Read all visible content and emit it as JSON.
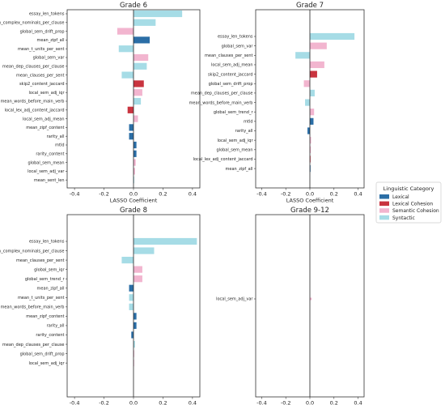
{
  "colors": {
    "Lexical": "#2b6ea6",
    "Lexical Cohesion": "#c9343f",
    "Semantic Cohesion": "#f2b5cf",
    "Syntactic": "#a6dce6"
  },
  "legend": {
    "title": "Linguistic Category",
    "items": [
      "Lexical",
      "Lexical Cohesion",
      "Semantic Cohesion",
      "Syntactic"
    ]
  },
  "chart_data": [
    {
      "type": "bar",
      "orientation": "horizontal",
      "title": "Grade 6",
      "xlabel": "LASSO Coefficient",
      "xlim": [
        -0.45,
        0.45
      ],
      "xticks": [
        "-0.4",
        "-0.2",
        "0.0",
        "0.2",
        "0.4"
      ],
      "xtick_values": [
        -0.4,
        -0.2,
        0.0,
        0.2,
        0.4
      ],
      "bars": [
        {
          "feature": "essay_len_tokens",
          "value": 0.33,
          "category": "Syntactic"
        },
        {
          "feature": "mean_complex_nominals_per_clause",
          "value": 0.15,
          "category": "Syntactic"
        },
        {
          "feature": "global_sem_drift_prop",
          "value": -0.11,
          "category": "Semantic Cohesion"
        },
        {
          "feature": "mean_zipf_all",
          "value": 0.11,
          "category": "Lexical"
        },
        {
          "feature": "mean_t_units_per_sent",
          "value": -0.1,
          "category": "Syntactic"
        },
        {
          "feature": "global_sem_var",
          "value": 0.1,
          "category": "Semantic Cohesion"
        },
        {
          "feature": "mean_dep_clauses_per_clause",
          "value": 0.09,
          "category": "Syntactic"
        },
        {
          "feature": "mean_clauses_per_sent",
          "value": -0.08,
          "category": "Syntactic"
        },
        {
          "feature": "skip2_content_jaccard",
          "value": 0.07,
          "category": "Lexical Cohesion"
        },
        {
          "feature": "local_sem_adj_iqr",
          "value": 0.06,
          "category": "Semantic Cohesion"
        },
        {
          "feature": "mean_words_before_main_verb",
          "value": 0.05,
          "category": "Syntactic"
        },
        {
          "feature": "local_lex_adj_content_jaccard",
          "value": -0.04,
          "category": "Lexical Cohesion"
        },
        {
          "feature": "local_sem_adj_mean",
          "value": 0.03,
          "category": "Semantic Cohesion"
        },
        {
          "feature": "mean_zipf_content",
          "value": -0.03,
          "category": "Lexical"
        },
        {
          "feature": "rarity_all",
          "value": -0.03,
          "category": "Lexical"
        },
        {
          "feature": "mtld",
          "value": 0.02,
          "category": "Lexical"
        },
        {
          "feature": "rarity_content",
          "value": 0.02,
          "category": "Lexical"
        },
        {
          "feature": "global_sem_mean",
          "value": 0.015,
          "category": "Semantic Cohesion"
        },
        {
          "feature": "local_sem_adj_var",
          "value": 0.01,
          "category": "Semantic Cohesion"
        },
        {
          "feature": "mean_sent_len",
          "value": 0.005,
          "category": "Syntactic"
        }
      ]
    },
    {
      "type": "bar",
      "orientation": "horizontal",
      "title": "Grade 7",
      "xlabel": "LASSO Coefficient",
      "xlim": [
        -0.45,
        0.45
      ],
      "xticks": [
        "-0.4",
        "-0.2",
        "0.0",
        "0.2",
        "0.4"
      ],
      "xtick_values": [
        -0.4,
        -0.2,
        0.0,
        0.2,
        0.4
      ],
      "bars": [
        {
          "feature": "essay_len_tokens",
          "value": 0.37,
          "category": "Syntactic"
        },
        {
          "feature": "global_sem_var",
          "value": 0.14,
          "category": "Semantic Cohesion"
        },
        {
          "feature": "mean_clauses_per_sent",
          "value": -0.12,
          "category": "Syntactic"
        },
        {
          "feature": "local_sem_adj_mean",
          "value": 0.12,
          "category": "Semantic Cohesion"
        },
        {
          "feature": "skip2_content_jaccard",
          "value": 0.06,
          "category": "Lexical Cohesion"
        },
        {
          "feature": "global_sem_drift_prop",
          "value": -0.05,
          "category": "Semantic Cohesion"
        },
        {
          "feature": "mean_dep_clauses_per_clause",
          "value": 0.04,
          "category": "Syntactic"
        },
        {
          "feature": "mean_words_before_main_verb",
          "value": -0.04,
          "category": "Syntactic"
        },
        {
          "feature": "global_sem_trend_r",
          "value": 0.035,
          "category": "Semantic Cohesion"
        },
        {
          "feature": "mtld",
          "value": 0.03,
          "category": "Lexical"
        },
        {
          "feature": "rarity_all",
          "value": -0.02,
          "category": "Lexical"
        },
        {
          "feature": "local_sem_adj_iqr",
          "value": 0.01,
          "category": "Semantic Cohesion"
        },
        {
          "feature": "global_sem_mean",
          "value": 0.008,
          "category": "Semantic Cohesion"
        },
        {
          "feature": "local_lex_adj_content_jaccard",
          "value": 0.005,
          "category": "Lexical Cohesion"
        },
        {
          "feature": "mean_zipf_all",
          "value": 0.003,
          "category": "Lexical"
        }
      ]
    },
    {
      "type": "bar",
      "orientation": "horizontal",
      "title": "Grade 8",
      "xlabel": "LASSO Coefficient",
      "xlim": [
        -0.45,
        0.45
      ],
      "xticks": [
        "-0.4",
        "-0.2",
        "0.0",
        "0.2",
        "0.4"
      ],
      "xtick_values": [
        -0.4,
        -0.2,
        0.0,
        0.2,
        0.4
      ],
      "bars": [
        {
          "feature": "essay_len_tokens",
          "value": 0.43,
          "category": "Syntactic"
        },
        {
          "feature": "mean_complex_nominals_per_clause",
          "value": 0.14,
          "category": "Syntactic"
        },
        {
          "feature": "mean_clauses_per_sent",
          "value": -0.08,
          "category": "Syntactic"
        },
        {
          "feature": "global_sem_iqr",
          "value": 0.06,
          "category": "Semantic Cohesion"
        },
        {
          "feature": "global_sem_trend_r",
          "value": 0.06,
          "category": "Semantic Cohesion"
        },
        {
          "feature": "mean_zipf_all",
          "value": -0.03,
          "category": "Lexical"
        },
        {
          "feature": "mean_t_units_per_sent",
          "value": -0.03,
          "category": "Syntactic"
        },
        {
          "feature": "mean_words_before_main_verb",
          "value": -0.03,
          "category": "Syntactic"
        },
        {
          "feature": "mean_zipf_content",
          "value": 0.02,
          "category": "Lexical"
        },
        {
          "feature": "rarity_all",
          "value": 0.02,
          "category": "Lexical"
        },
        {
          "feature": "rarity_content",
          "value": -0.015,
          "category": "Lexical"
        },
        {
          "feature": "mean_dep_clauses_per_clause",
          "value": 0.01,
          "category": "Syntactic"
        },
        {
          "feature": "global_sem_drift_prop",
          "value": 0.005,
          "category": "Semantic Cohesion"
        },
        {
          "feature": "local_sem_adj_iqr",
          "value": 0.003,
          "category": "Semantic Cohesion"
        }
      ]
    },
    {
      "type": "bar",
      "orientation": "horizontal",
      "title": "Grade 9-12",
      "xlabel": "LASSO Coefficient",
      "xlim": [
        -0.45,
        0.45
      ],
      "xticks": [
        "-0.4",
        "-0.2",
        "0.0",
        "0.2",
        "0.4"
      ],
      "xtick_values": [
        -0.4,
        -0.2,
        0.0,
        0.2,
        0.4
      ],
      "bars": [
        {
          "feature": "local_sem_adj_var",
          "value": 0.015,
          "category": "Semantic Cohesion"
        }
      ]
    }
  ]
}
